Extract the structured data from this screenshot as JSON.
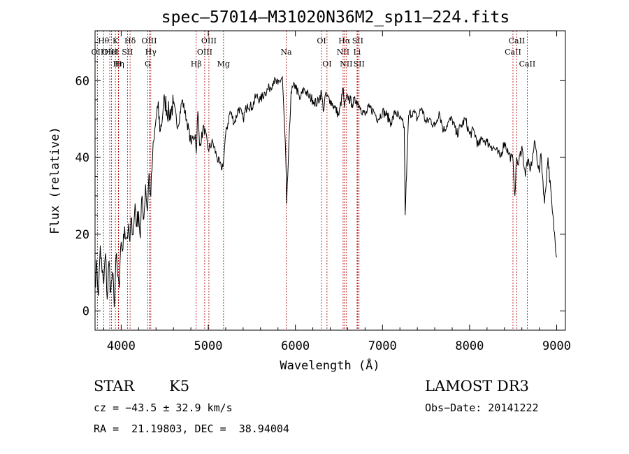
{
  "chart_data": {
    "type": "line",
    "title": "spec‒57014‒M31020N36M2_sp11‒224.fits",
    "xlabel": "Wavelength (Å)",
    "ylabel": "Flux (relative)",
    "xlim": [
      3700,
      9100
    ],
    "ylim": [
      -5,
      73
    ],
    "xticks": [
      4000,
      5000,
      6000,
      7000,
      8000,
      9000
    ],
    "yticks": [
      0,
      20,
      40,
      60
    ],
    "series": [
      {
        "name": "spectrum",
        "x": [
          3700,
          3720,
          3740,
          3760,
          3780,
          3800,
          3820,
          3840,
          3860,
          3880,
          3900,
          3920,
          3940,
          3960,
          3980,
          4000,
          4020,
          4040,
          4060,
          4080,
          4100,
          4120,
          4140,
          4160,
          4180,
          4200,
          4220,
          4240,
          4260,
          4280,
          4300,
          4320,
          4340,
          4360,
          4380,
          4400,
          4420,
          4450,
          4480,
          4500,
          4550,
          4600,
          4650,
          4700,
          4750,
          4800,
          4850,
          4861,
          4880,
          4900,
          4950,
          5000,
          5050,
          5100,
          5150,
          5175,
          5200,
          5250,
          5300,
          5350,
          5400,
          5450,
          5500,
          5550,
          5600,
          5650,
          5700,
          5750,
          5800,
          5850,
          5890,
          5900,
          5950,
          6000,
          6050,
          6100,
          6150,
          6200,
          6250,
          6300,
          6320,
          6340,
          6400,
          6450,
          6500,
          6550,
          6563,
          6600,
          6650,
          6700,
          6750,
          6800,
          6850,
          6900,
          6950,
          7000,
          7050,
          7100,
          7150,
          7200,
          7250,
          7260,
          7300,
          7350,
          7400,
          7450,
          7500,
          7550,
          7600,
          7650,
          7700,
          7750,
          7800,
          7850,
          7900,
          7950,
          8000,
          8050,
          8100,
          8150,
          8200,
          8250,
          8300,
          8350,
          8400,
          8450,
          8500,
          8520,
          8540,
          8560,
          8600,
          8640,
          8660,
          8700,
          8750,
          8800,
          8820,
          8860,
          8900,
          8950,
          9000
        ],
        "y": [
          8,
          12,
          4,
          17,
          10,
          7,
          15,
          3,
          13,
          5,
          10,
          1,
          14,
          9,
          6,
          18,
          16,
          22,
          19,
          21,
          18,
          24,
          20,
          28,
          22,
          26,
          19,
          30,
          24,
          33,
          26,
          36,
          30,
          40,
          45,
          50,
          53,
          47,
          52,
          55,
          51,
          54,
          48,
          55,
          50,
          44,
          46,
          41,
          52,
          43,
          48,
          42,
          44,
          40,
          37,
          39,
          46,
          52,
          49,
          53,
          50,
          54,
          53,
          56,
          55,
          57,
          58,
          60,
          59,
          61,
          40,
          28,
          57,
          59,
          55,
          58,
          56,
          55,
          54,
          57,
          52,
          56,
          55,
          53,
          51,
          58,
          53,
          56,
          54,
          55,
          53,
          51,
          53,
          52,
          50,
          52,
          51,
          49,
          52,
          50,
          48,
          25,
          51,
          52,
          50,
          53,
          49,
          50,
          48,
          52,
          47,
          49,
          50,
          46,
          48,
          50,
          46,
          47,
          43,
          45,
          44,
          43,
          42,
          40,
          44,
          41,
          39,
          30,
          40,
          38,
          43,
          35,
          39,
          37,
          44,
          36,
          41,
          28,
          40,
          26,
          14
        ]
      }
    ],
    "lines": [
      {
        "name": "OII",
        "x": 3727,
        "row": 2
      },
      {
        "name": "Hθ",
        "x": 3798,
        "row": 1
      },
      {
        "name": "OIII",
        "x": 3869,
        "row": 2
      },
      {
        "name": "HeI",
        "x": 3889,
        "row": 2
      },
      {
        "name": "K",
        "x": 3934,
        "row": 1
      },
      {
        "name": "Hη",
        "x": 3970,
        "row": 3
      },
      {
        "name": "H",
        "x": 3968,
        "row": 3
      },
      {
        "name": "SII",
        "x": 4072,
        "row": 2
      },
      {
        "name": "Hδ",
        "x": 4102,
        "row": 1
      },
      {
        "name": "OIII",
        "x": 4321,
        "row": 1
      },
      {
        "name": "Hγ",
        "x": 4340,
        "row": 2
      },
      {
        "name": "G",
        "x": 4305,
        "row": 3
      },
      {
        "name": "Hβ",
        "x": 4861,
        "row": 3
      },
      {
        "name": "OIII",
        "x": 4959,
        "row": 2
      },
      {
        "name": "OIII",
        "x": 5007,
        "row": 1
      },
      {
        "name": "Mg",
        "x": 5175,
        "row": 3
      },
      {
        "name": "Na",
        "x": 5894,
        "row": 2
      },
      {
        "name": "OI",
        "x": 6300,
        "row": 1
      },
      {
        "name": "OI",
        "x": 6363,
        "row": 3
      },
      {
        "name": "NII",
        "x": 6548,
        "row": 2
      },
      {
        "name": "Hα",
        "x": 6563,
        "row": 1
      },
      {
        "name": "NII",
        "x": 6583,
        "row": 3
      },
      {
        "name": "Li",
        "x": 6708,
        "row": 2
      },
      {
        "name": "SII",
        "x": 6716,
        "row": 1
      },
      {
        "name": "SII",
        "x": 6731,
        "row": 3
      },
      {
        "name": "CaII",
        "x": 8498,
        "row": 2
      },
      {
        "name": "CaII",
        "x": 8542,
        "row": 1
      },
      {
        "name": "CaII",
        "x": 8662,
        "row": 3
      }
    ]
  },
  "info": {
    "object_class": "STAR",
    "subclass": "K5",
    "survey": "LAMOST DR3",
    "cz": "cz = −43.5 ± 32.9 km/s",
    "obs_date": "Obs−Date: 20141222",
    "coords": "RA =  21.19803, DEC =  38.94004"
  }
}
